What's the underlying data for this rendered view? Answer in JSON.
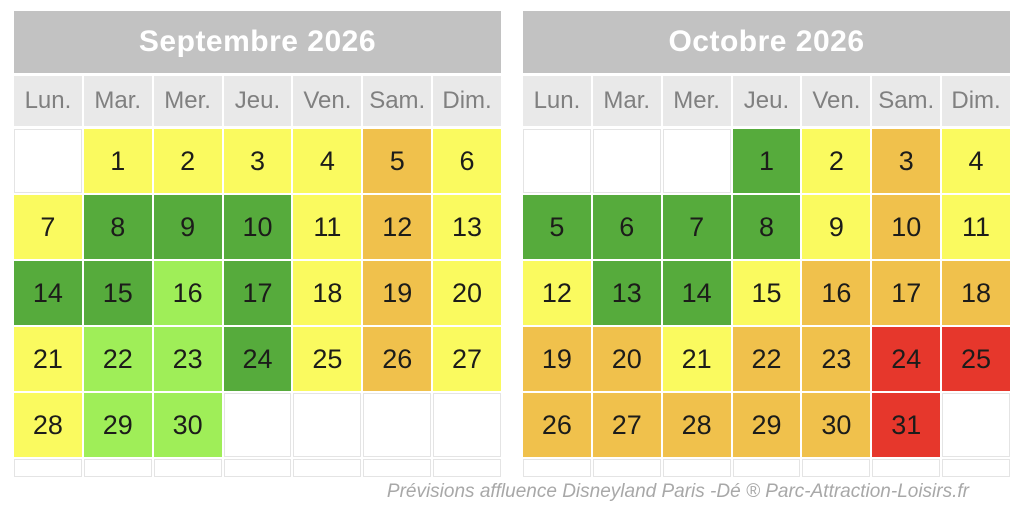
{
  "caption": "Prévisions affluence Disneyland Paris -Dé ® Parc-Attraction-Loisirs.fr",
  "chart_data": {
    "type": "heatmap",
    "subject": "crowd-forecast-calendar",
    "day_headers": [
      "Lun.",
      "Mar.",
      "Mer.",
      "Jeu.",
      "Ven.",
      "Sam.",
      "Dim."
    ],
    "levels": {
      "green": "#56ab3c",
      "lightgreen": "#9fee58",
      "yellow": "#fafa5f",
      "orange": "#f0c14c",
      "red": "#e6372c"
    },
    "months": [
      {
        "title": "Septembre 2026",
        "weeks": [
          [
            null,
            {
              "day": 1,
              "level": "yellow"
            },
            {
              "day": 2,
              "level": "yellow"
            },
            {
              "day": 3,
              "level": "yellow"
            },
            {
              "day": 4,
              "level": "yellow"
            },
            {
              "day": 5,
              "level": "orange"
            },
            {
              "day": 6,
              "level": "yellow"
            }
          ],
          [
            {
              "day": 7,
              "level": "yellow"
            },
            {
              "day": 8,
              "level": "green"
            },
            {
              "day": 9,
              "level": "green"
            },
            {
              "day": 10,
              "level": "green"
            },
            {
              "day": 11,
              "level": "yellow"
            },
            {
              "day": 12,
              "level": "orange"
            },
            {
              "day": 13,
              "level": "yellow"
            }
          ],
          [
            {
              "day": 14,
              "level": "green"
            },
            {
              "day": 15,
              "level": "green"
            },
            {
              "day": 16,
              "level": "lightgreen"
            },
            {
              "day": 17,
              "level": "green"
            },
            {
              "day": 18,
              "level": "yellow"
            },
            {
              "day": 19,
              "level": "orange"
            },
            {
              "day": 20,
              "level": "yellow"
            }
          ],
          [
            {
              "day": 21,
              "level": "yellow"
            },
            {
              "day": 22,
              "level": "lightgreen"
            },
            {
              "day": 23,
              "level": "lightgreen"
            },
            {
              "day": 24,
              "level": "green"
            },
            {
              "day": 25,
              "level": "yellow"
            },
            {
              "day": 26,
              "level": "orange"
            },
            {
              "day": 27,
              "level": "yellow"
            }
          ],
          [
            {
              "day": 28,
              "level": "yellow"
            },
            {
              "day": 29,
              "level": "lightgreen"
            },
            {
              "day": 30,
              "level": "lightgreen"
            },
            null,
            null,
            null,
            null
          ]
        ]
      },
      {
        "title": "Octobre 2026",
        "weeks": [
          [
            null,
            null,
            null,
            {
              "day": 1,
              "level": "green"
            },
            {
              "day": 2,
              "level": "yellow"
            },
            {
              "day": 3,
              "level": "orange"
            },
            {
              "day": 4,
              "level": "yellow"
            }
          ],
          [
            {
              "day": 5,
              "level": "green"
            },
            {
              "day": 6,
              "level": "green"
            },
            {
              "day": 7,
              "level": "green"
            },
            {
              "day": 8,
              "level": "green"
            },
            {
              "day": 9,
              "level": "yellow"
            },
            {
              "day": 10,
              "level": "orange"
            },
            {
              "day": 11,
              "level": "yellow"
            }
          ],
          [
            {
              "day": 12,
              "level": "yellow"
            },
            {
              "day": 13,
              "level": "green"
            },
            {
              "day": 14,
              "level": "green"
            },
            {
              "day": 15,
              "level": "yellow"
            },
            {
              "day": 16,
              "level": "orange"
            },
            {
              "day": 17,
              "level": "orange"
            },
            {
              "day": 18,
              "level": "orange"
            }
          ],
          [
            {
              "day": 19,
              "level": "orange"
            },
            {
              "day": 20,
              "level": "orange"
            },
            {
              "day": 21,
              "level": "yellow"
            },
            {
              "day": 22,
              "level": "orange"
            },
            {
              "day": 23,
              "level": "orange"
            },
            {
              "day": 24,
              "level": "red"
            },
            {
              "day": 25,
              "level": "red"
            }
          ],
          [
            {
              "day": 26,
              "level": "orange"
            },
            {
              "day": 27,
              "level": "orange"
            },
            {
              "day": 28,
              "level": "orange"
            },
            {
              "day": 29,
              "level": "orange"
            },
            {
              "day": 30,
              "level": "orange"
            },
            {
              "day": 31,
              "level": "red"
            },
            null
          ]
        ]
      }
    ]
  }
}
